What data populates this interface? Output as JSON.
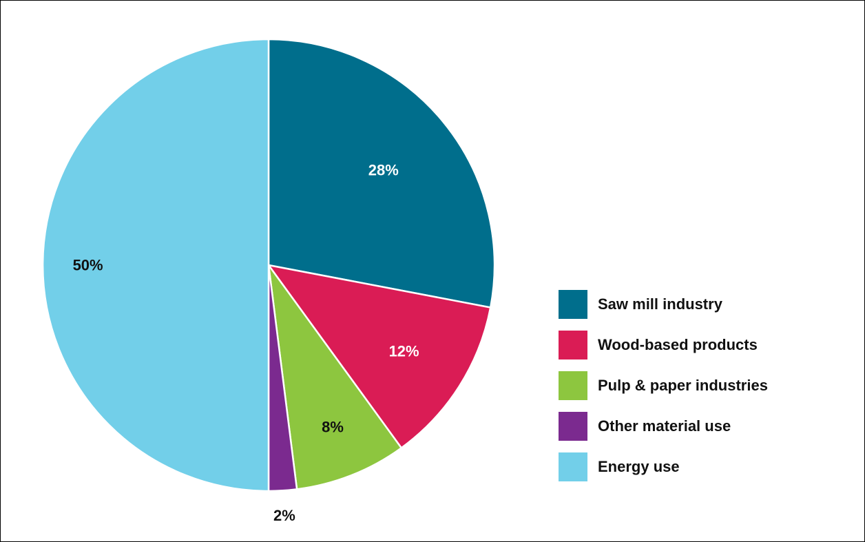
{
  "chart_data": {
    "type": "pie",
    "start": "12 o'clock, clockwise",
    "legend_position": "right",
    "slices": [
      {
        "label": "Saw mill industry",
        "value": 28,
        "value_label": "28%",
        "color": "#006e8c",
        "label_color": "#ffffff"
      },
      {
        "label": "Wood-based products",
        "value": 12,
        "value_label": "12%",
        "color": "#da1c55",
        "label_color": "#ffffff"
      },
      {
        "label": "Pulp & paper industries",
        "value": 8,
        "value_label": "8%",
        "color": "#8dc63f",
        "label_color": "#111111"
      },
      {
        "label": "Other material use",
        "value": 2,
        "value_label": "2%",
        "color": "#7b2a8f",
        "label_color": "#111111"
      },
      {
        "label": "Energy use",
        "value": 50,
        "value_label": "50%",
        "color": "#72cfe9",
        "label_color": "#111111"
      }
    ]
  }
}
